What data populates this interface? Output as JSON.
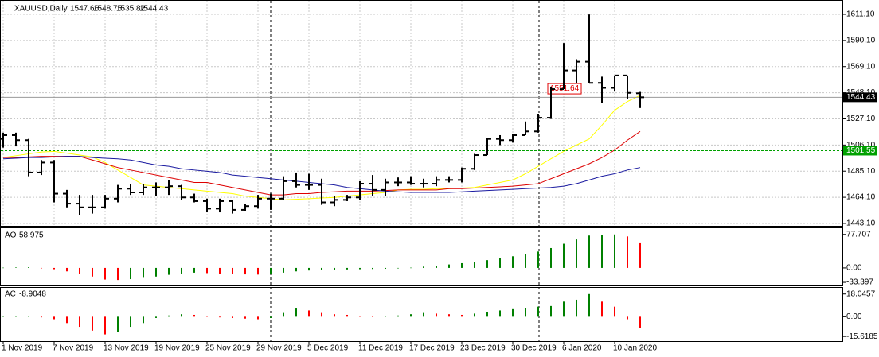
{
  "chart_data": {
    "type": "ohlc",
    "title": "XAUUSD,Daily",
    "categories": [
      "1 Nov 2019",
      null,
      null,
      null,
      "7 Nov 2019",
      null,
      null,
      null,
      "13 Nov 2019",
      null,
      null,
      null,
      "19 Nov 2019",
      null,
      null,
      null,
      "25 Nov 2019",
      null,
      null,
      null,
      "29 Nov 2019",
      null,
      null,
      null,
      "5 Dec 2019",
      null,
      null,
      null,
      "11 Dec 2019",
      null,
      null,
      null,
      "17 Dec 2019",
      null,
      null,
      null,
      "23 Dec 2019",
      null,
      null,
      null,
      "30 Dec 2019",
      null,
      null,
      null,
      "6 Jan 2020",
      null,
      null,
      null,
      "10 Jan 2020",
      null,
      null
    ],
    "open": [
      1511,
      1514,
      1510,
      1484,
      1492,
      1467,
      1459,
      1456,
      1456,
      1463,
      1471,
      1468,
      1472,
      1472,
      1473,
      1464,
      1461,
      1455,
      1461,
      1454,
      1457,
      1463,
      1463,
      1477,
      1474,
      1474,
      1460,
      1462,
      1464,
      1475,
      1470,
      1476,
      1476,
      1475,
      1475,
      1478,
      1478,
      1487,
      1498,
      1511,
      1510,
      1514,
      1517,
      1528,
      1551,
      1566,
      1573,
      1556,
      1552,
      1562,
      1547.66
    ],
    "high": [
      1516,
      1516,
      1511,
      1494,
      1494,
      1470,
      1466,
      1466,
      1466,
      1474,
      1475,
      1475,
      1476,
      1478,
      1474,
      1467,
      1463,
      1463,
      1462,
      1459,
      1466,
      1467,
      1481,
      1484,
      1483,
      1479,
      1465,
      1466,
      1477,
      1482,
      1479,
      1480,
      1481,
      1479,
      1481,
      1481,
      1488,
      1499,
      1512,
      1514,
      1515,
      1525,
      1531,
      1553,
      1588,
      1575,
      1611,
      1561,
      1562,
      1562,
      1548.75
    ],
    "low": [
      1504,
      1505,
      1481,
      1482,
      1460,
      1456,
      1450,
      1451,
      1455,
      1460,
      1466,
      1466,
      1465,
      1466,
      1462,
      1460,
      1452,
      1452,
      1451,
      1453,
      1455,
      1454,
      1462,
      1472,
      1470,
      1458,
      1457,
      1461,
      1462,
      1465,
      1465,
      1473,
      1474,
      1472,
      1473,
      1476,
      1476,
      1486,
      1498,
      1506,
      1508,
      1514,
      1516,
      1527,
      1551,
      1556,
      1556,
      1540,
      1549,
      1543,
      1535.82
    ],
    "close": [
      1514,
      1510,
      1484,
      1492,
      1467,
      1459,
      1456,
      1456,
      1463,
      1471,
      1468,
      1472,
      1472,
      1473,
      1464,
      1461,
      1455,
      1461,
      1454,
      1457,
      1463,
      1463,
      1477,
      1474,
      1474,
      1460,
      1462,
      1464,
      1475,
      1470,
      1476,
      1476,
      1475,
      1475,
      1478,
      1478,
      1487,
      1498,
      1511,
      1510,
      1514,
      1517,
      1528,
      1551,
      1566,
      1573,
      1556,
      1552,
      1562,
      1548,
      1544.43
    ],
    "color": "#000000",
    "ylim": [
      1441.8,
      1619.4
    ],
    "yticks": [
      {
        "value": 1611.1,
        "label": "1611.10"
      },
      {
        "value": 1590.1,
        "label": "1590.10"
      },
      {
        "value": 1569.1,
        "label": "1569.10"
      },
      {
        "value": 1548.1,
        "label": "1548.10"
      },
      {
        "value": 1527.1,
        "label": "1527.10"
      },
      {
        "value": 1506.1,
        "label": "1506.10"
      },
      {
        "value": 1485.1,
        "label": "1485.10"
      },
      {
        "value": 1464.1,
        "label": "1464.10"
      },
      {
        "value": 1443.1,
        "label": "1443.10"
      }
    ],
    "grid": true,
    "moving_averages": [
      {
        "color": "#ffff00",
        "values": [
          1496,
          1497.5,
          1499,
          1500.5,
          1501,
          1499.5,
          1498,
          1496.5,
          1492,
          1486,
          1480,
          1474,
          1473,
          1472,
          1471,
          1470,
          1469,
          1468,
          1467,
          1465,
          1464,
          1463,
          1462,
          1462.5,
          1463,
          1463.5,
          1464,
          1465,
          1466,
          1467,
          1468,
          1470,
          1470.5,
          1470.5,
          1471,
          1471,
          1471.5,
          1472,
          1474,
          1476,
          1478,
          1483,
          1489,
          1495,
          1501,
          1506,
          1511,
          1522,
          1534,
          1541,
          1546
        ]
      },
      {
        "color": "#dd0000",
        "values": [
          1496,
          1496,
          1496.5,
          1497,
          1497,
          1497,
          1497,
          1494,
          1491,
          1488,
          1486,
          1484,
          1482,
          1480,
          1478,
          1476,
          1476,
          1474,
          1472,
          1470,
          1468,
          1466,
          1466,
          1467,
          1467,
          1468,
          1468.5,
          1469,
          1469,
          1469,
          1469.5,
          1470,
          1470,
          1470,
          1470,
          1471,
          1471,
          1471.5,
          1472,
          1472.5,
          1473,
          1474,
          1475,
          1479,
          1483,
          1487,
          1491,
          1496,
          1502,
          1510,
          1517
        ]
      },
      {
        "color": "#1a1aa0",
        "values": [
          1495,
          1495.5,
          1496,
          1496,
          1496.5,
          1497,
          1497,
          1496,
          1495.5,
          1495,
          1494,
          1492,
          1490,
          1489,
          1487,
          1486,
          1485,
          1484,
          1482,
          1481,
          1480,
          1479,
          1478,
          1477,
          1476,
          1475,
          1474,
          1472,
          1471,
          1470,
          1469,
          1468.5,
          1468,
          1468,
          1468,
          1468,
          1468.5,
          1469,
          1469.5,
          1470,
          1470.5,
          1471,
          1471.5,
          1472,
          1473,
          1475,
          1478,
          1481,
          1483,
          1486,
          1488
        ]
      }
    ],
    "hlines": [
      {
        "value": 1501.55,
        "color": "#00a000"
      }
    ],
    "price_labels": [
      1551.64
    ]
  },
  "indicators": [
    {
      "name": "AO",
      "type": "bar",
      "up_color": "#008000",
      "down_color": "#ff0000",
      "values": [
        0.5,
        1,
        1.5,
        -1,
        -3,
        -8,
        -14,
        -20,
        -27,
        -28,
        -26,
        -23,
        -20,
        -16,
        -13,
        -11,
        -12,
        -13,
        -14,
        -15,
        -15.5,
        -14,
        -11,
        -8,
        -6,
        -5,
        -4,
        -3.5,
        -3,
        -2.5,
        -2,
        -1,
        0.5,
        3,
        5,
        8,
        11,
        14,
        18,
        22,
        27,
        32,
        38,
        46,
        56,
        66,
        75,
        76.5,
        77.707,
        73,
        58.975
      ],
      "ylim": [
        -37,
        86.5
      ],
      "yticks": [
        77.707,
        {
          "value": 0,
          "label": "0.00"
        },
        -33.397
      ]
    },
    {
      "name": "AC",
      "type": "bar",
      "up_color": "#008000",
      "down_color": "#ff0000",
      "values": [
        0.3,
        0.5,
        0.6,
        -0.5,
        -2,
        -5,
        -8,
        -11,
        -14,
        -12,
        -8,
        -5,
        -1,
        1,
        2,
        1.5,
        0.5,
        -0.5,
        -1,
        -1.5,
        -2,
        -1,
        3,
        6.5,
        5,
        3,
        2,
        1.5,
        0.5,
        0.2,
        0.5,
        1,
        2,
        3,
        2.5,
        2,
        1.5,
        2.5,
        3.5,
        5,
        6,
        7,
        8,
        8.5,
        12,
        13.5,
        18,
        12,
        8,
        -2,
        -8.9048
      ],
      "ylim": [
        -18.05,
        21.65
      ],
      "yticks": [
        18.0457,
        {
          "value": 0,
          "label": "0.00"
        },
        -15.6185
      ]
    }
  ]
}
